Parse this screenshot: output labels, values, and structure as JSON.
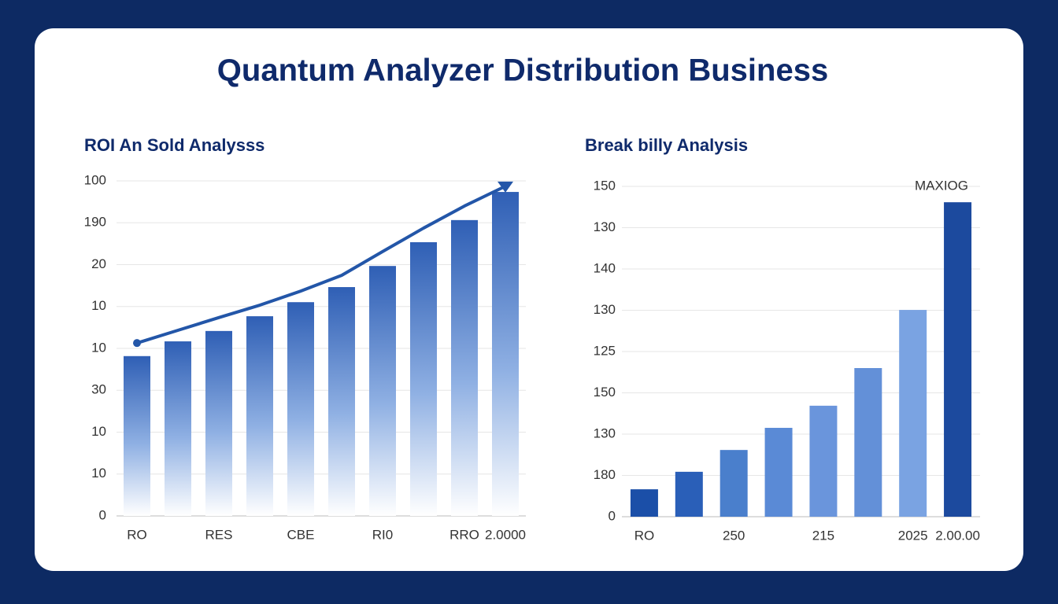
{
  "title": "Quantum Analyzer Distribution Business",
  "chart_data": [
    {
      "type": "bar",
      "title": "ROI An Sold Analysss",
      "categories": [
        "RO",
        null,
        "RES",
        null,
        "CBE",
        null,
        "RI0",
        null,
        "RRO",
        "2.0000"
      ],
      "series": [
        {
          "type": "bar",
          "color": "#2f5fb5",
          "values": [
            47.7,
            52.1,
            55.2,
            59.6,
            63.8,
            68.3,
            74.6,
            81.7,
            88.3,
            96.7
          ]
        },
        {
          "type": "line",
          "color": "#2356a8",
          "values": [
            51.6,
            55.4,
            59.2,
            62.9,
            67.1,
            71.8,
            78.9,
            85.9,
            92.5,
            98.4
          ]
        }
      ],
      "ylim": [
        0,
        100
      ],
      "yticks": [
        0,
        {
          "value": 12.5,
          "label": "10"
        },
        {
          "value": 25,
          "label": "10"
        },
        {
          "value": 37.5,
          "label": "30"
        },
        {
          "value": 50,
          "label": "10"
        },
        {
          "value": 62.5,
          "label": "10"
        },
        {
          "value": 75,
          "label": "20"
        },
        {
          "value": 87.5,
          "label": "190"
        },
        100
      ],
      "grid": true
    },
    {
      "type": "bar",
      "title": "Break billy Analysis",
      "annotation": "MAXIOG",
      "categories": [
        "RO",
        null,
        "250",
        null,
        "215",
        null,
        "2025",
        "2.00.00"
      ],
      "series": [
        {
          "type": "bar",
          "colors": [
            "#1b4fa8",
            "#2a5fb8",
            "#4a7fcc",
            "#5a8ad6",
            "#6a95dc",
            "#6390d8",
            "#7aa3e2",
            "#1c4a9e"
          ],
          "values": [
            8.3,
            13.6,
            20.2,
            26.9,
            33.6,
            45.0,
            62.6,
            95.2
          ]
        }
      ],
      "ylim": [
        0,
        100
      ],
      "yticks": [
        0,
        {
          "value": 12.5,
          "label": "180"
        },
        {
          "value": 25,
          "label": "130"
        },
        {
          "value": 37.5,
          "label": "150"
        },
        {
          "value": 50,
          "label": "125"
        },
        {
          "value": 62.5,
          "label": "130"
        },
        {
          "value": 75,
          "label": "140"
        },
        {
          "value": 87.5,
          "label": "130"
        },
        {
          "value": 100,
          "label": "150"
        }
      ],
      "grid": true
    }
  ]
}
